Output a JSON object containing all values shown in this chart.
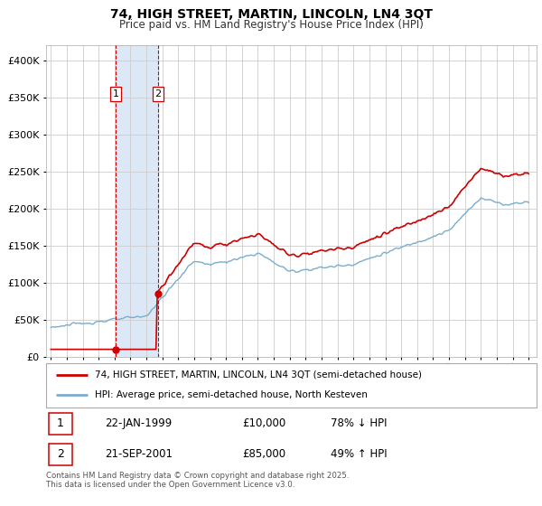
{
  "title": "74, HIGH STREET, MARTIN, LINCOLN, LN4 3QT",
  "subtitle": "Price paid vs. HM Land Registry's House Price Index (HPI)",
  "legend_line1": "74, HIGH STREET, MARTIN, LINCOLN, LN4 3QT (semi-detached house)",
  "legend_line2": "HPI: Average price, semi-detached house, North Kesteven",
  "transaction1_date": "22-JAN-1999",
  "transaction1_price": "£10,000",
  "transaction1_hpi": "78% ↓ HPI",
  "transaction2_date": "21-SEP-2001",
  "transaction2_price": "£85,000",
  "transaction2_hpi": "49% ↑ HPI",
  "footer": "Contains HM Land Registry data © Crown copyright and database right 2025.\nThis data is licensed under the Open Government Licence v3.0.",
  "red_color": "#cc0000",
  "blue_color": "#7aadcf",
  "highlight_color": "#dce8f5",
  "grid_color": "#cccccc",
  "background_color": "#ffffff",
  "ylim": [
    0,
    420000
  ],
  "yticks": [
    0,
    50000,
    100000,
    150000,
    200000,
    250000,
    300000,
    350000,
    400000
  ],
  "year_start": 1995,
  "year_end": 2025,
  "transaction1_x": 1999.07,
  "transaction2_x": 2001.73,
  "transaction1_price_val": 10000,
  "transaction2_price_val": 85000
}
